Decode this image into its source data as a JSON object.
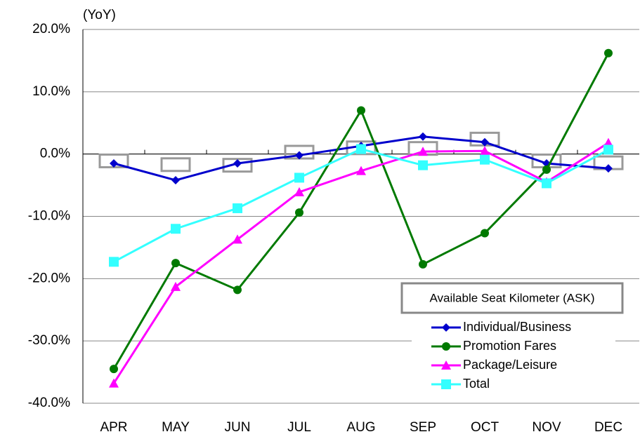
{
  "chart_data": {
    "type": "line",
    "y_label": "(YoY)",
    "categories": [
      "APR",
      "MAY",
      "JUN",
      "JUL",
      "AUG",
      "SEP",
      "OCT",
      "NOV",
      "DEC"
    ],
    "box_series": {
      "name": "Available Seat Kilometer (ASK)",
      "color": "#999999",
      "values": [
        -1.1,
        -1.7,
        -1.8,
        0.3,
        1.0,
        0.9,
        2.4,
        -1.1,
        -1.4
      ]
    },
    "series": [
      {
        "name": "Individual/Business",
        "color": "#0000cc",
        "marker": "diamond",
        "values": [
          -1.5,
          -4.2,
          -1.5,
          -0.2,
          1.3,
          2.8,
          1.9,
          -1.5,
          -2.3
        ]
      },
      {
        "name": "Promotion Fares",
        "color": "#007a00",
        "marker": "circle",
        "values": [
          -34.5,
          -17.5,
          -21.8,
          -9.4,
          7.0,
          -17.7,
          -12.7,
          -2.5,
          16.2
        ]
      },
      {
        "name": "Package/Leisure",
        "color": "#ff00ff",
        "marker": "triangle",
        "values": [
          -36.8,
          -21.3,
          -13.7,
          -6.1,
          -2.7,
          0.4,
          0.5,
          -4.5,
          1.8
        ]
      },
      {
        "name": "Total",
        "color": "#33ffff",
        "marker": "square",
        "values": [
          -17.3,
          -12.0,
          -8.7,
          -3.8,
          0.8,
          -1.8,
          -0.9,
          -4.7,
          0.7
        ]
      }
    ],
    "ylim": [
      -40,
      20
    ],
    "yticks": [
      {
        "value": -40,
        "label": "-40.0%"
      },
      {
        "value": -30,
        "label": "-30.0%"
      },
      {
        "value": -20,
        "label": "-20.0%"
      },
      {
        "value": -10,
        "label": "-10.0%"
      },
      {
        "value": 0,
        "label": "0.0%"
      },
      {
        "value": 10,
        "label": "10.0%"
      },
      {
        "value": 20,
        "label": "20.0%"
      }
    ],
    "grid": true
  }
}
